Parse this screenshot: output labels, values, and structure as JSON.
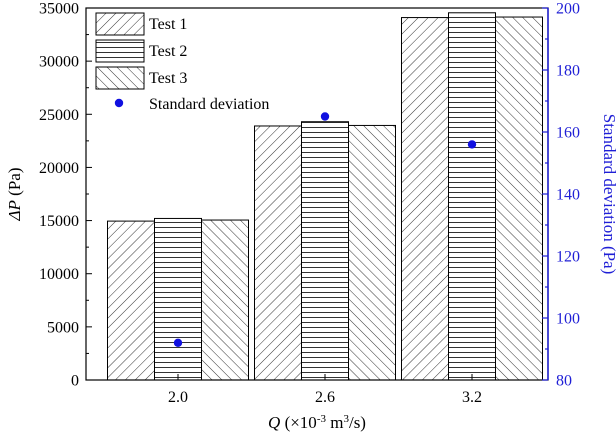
{
  "chart_data": {
    "type": "bar",
    "categories": [
      "2.0",
      "2.6",
      "3.2"
    ],
    "series": [
      {
        "name": "Test 1",
        "values": [
          14950,
          23900,
          34100
        ],
        "pattern": "diag-right"
      },
      {
        "name": "Test 2",
        "values": [
          15200,
          24300,
          34550
        ],
        "pattern": "horizontal"
      },
      {
        "name": "Test 3",
        "values": [
          15050,
          23950,
          34150
        ],
        "pattern": "diag-left"
      }
    ],
    "scatter_series": {
      "name": "Standard deviation",
      "values": [
        92,
        165,
        156
      ],
      "color": "#1010e0"
    },
    "xlabel": {
      "main": "Q",
      "pre": " (×10",
      "sup": "-3",
      "mid": " m",
      "sup2": "3",
      "post": "/s)"
    },
    "ylabel_left": {
      "symbol": "ΔP",
      "unit": " (Pa)"
    },
    "ylabel_right": "Standard deviation (Pa)",
    "ylim_left": [
      0,
      35000
    ],
    "yticks_left": [
      0,
      5000,
      10000,
      15000,
      20000,
      25000,
      30000,
      35000
    ],
    "ylim_right": [
      80,
      200
    ],
    "yticks_right": [
      80,
      100,
      120,
      140,
      160,
      180,
      200
    ],
    "right_axis_color": "#1f1fd6",
    "grid": false,
    "legend_position": "top-left"
  }
}
